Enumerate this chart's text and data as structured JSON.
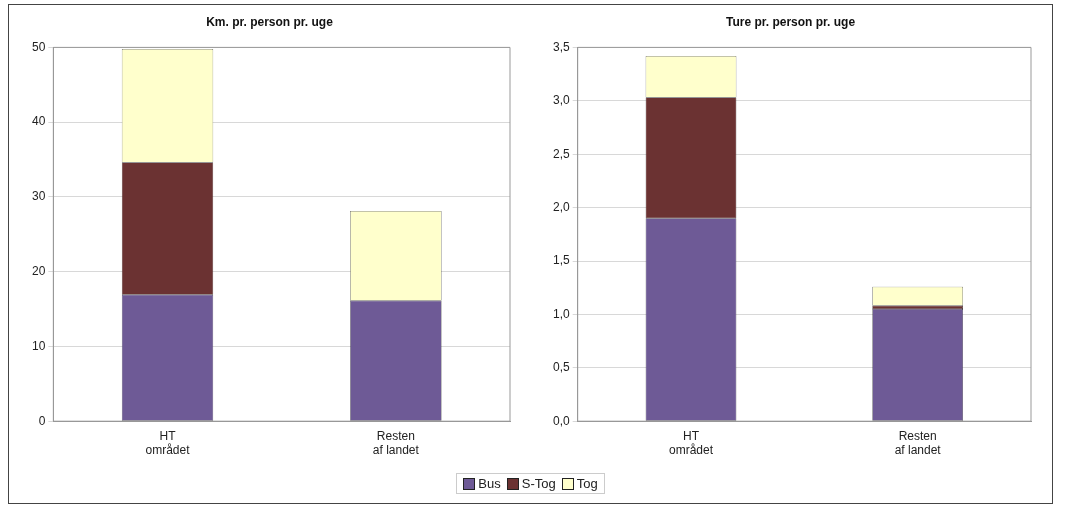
{
  "chart_data": [
    {
      "type": "bar",
      "title": "Km. pr. person pr. uge",
      "categories": [
        "HT\nområdet",
        "Resten\naf landet"
      ],
      "stacked": true,
      "series": [
        {
          "name": "Bus",
          "color": "#6e5a96",
          "values": [
            16.9,
            16.1
          ]
        },
        {
          "name": "S-Tog",
          "color": "#6b3232",
          "values": [
            17.7,
            0
          ]
        },
        {
          "name": "Tog",
          "color": "#ffffcc",
          "values": [
            15.2,
            12.0
          ]
        }
      ],
      "ylim": [
        0,
        50
      ],
      "yticks": [
        0,
        10,
        20,
        30,
        40,
        50
      ],
      "grid": "y",
      "legend": "bottom"
    },
    {
      "type": "bar",
      "title": "Ture pr. person pr. uge",
      "categories": [
        "HT\nområdet",
        "Resten\naf landet"
      ],
      "stacked": true,
      "series": [
        {
          "color": "#6e5a96",
          "values": [
            1.9,
            1.05
          ]
        },
        {
          "color": "#6b3232",
          "values": [
            1.13,
            0.03
          ]
        },
        {
          "color": "#ffffcc",
          "values": [
            0.39,
            0.18
          ]
        }
      ],
      "ylim": [
        0,
        3.5
      ],
      "yticks": [
        {
          "value": 0,
          "label": "0,0"
        },
        {
          "value": 0.5,
          "label": "0,5"
        },
        {
          "value": 1,
          "label": "1,0"
        },
        {
          "value": 1.5,
          "label": "1,5"
        },
        {
          "value": 2,
          "label": "2,0"
        },
        {
          "value": 2.5,
          "label": "2,5"
        },
        {
          "value": 3,
          "label": "3,0"
        },
        {
          "value": 3.5,
          "label": "3,5"
        }
      ],
      "grid": "y"
    }
  ]
}
